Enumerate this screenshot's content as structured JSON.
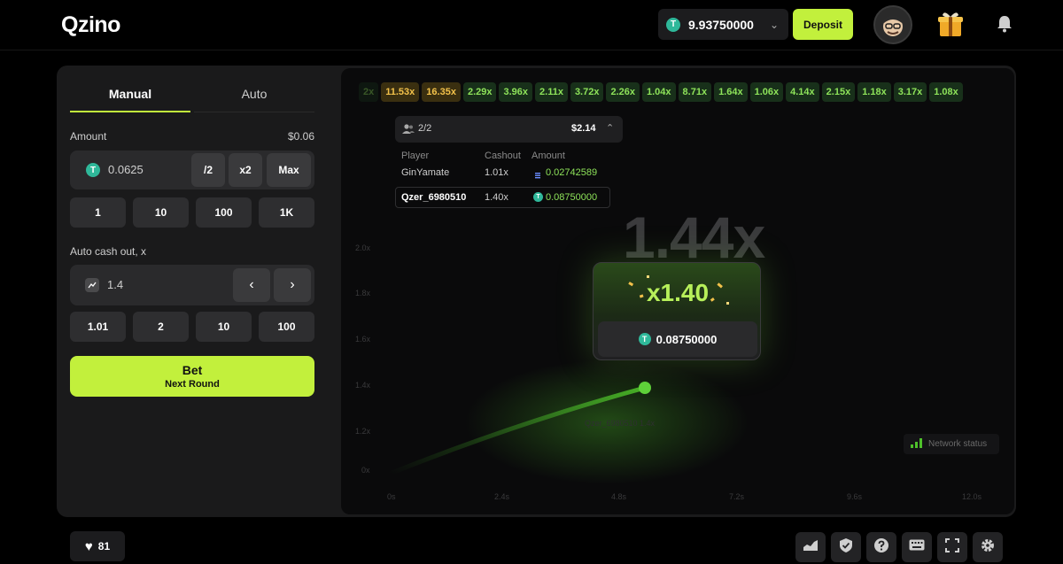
{
  "header": {
    "logo": "Qzino",
    "balance": "9.93750000",
    "coin_symbol": "T",
    "deposit_label": "Deposit"
  },
  "bet_panel": {
    "tabs": [
      "Manual",
      "Auto"
    ],
    "amount_label": "Amount",
    "amount_usd": "$0.06",
    "amount_value": "0.0625",
    "amount_actions": [
      "/2",
      "x2",
      "Max"
    ],
    "quick_amounts": [
      "1",
      "10",
      "100",
      "1K"
    ],
    "auto_cashout_label": "Auto cash out, x",
    "auto_cashout_value": "1.4",
    "quick_cashouts": [
      "1.01",
      "2",
      "10",
      "100"
    ],
    "bet_label": "Bet",
    "bet_sub": "Next Round"
  },
  "history": [
    {
      "v": "2x",
      "style": "faded"
    },
    {
      "v": "11.53x",
      "style": "gold"
    },
    {
      "v": "16.35x",
      "style": "gold"
    },
    {
      "v": "2.29x",
      "style": "green"
    },
    {
      "v": "3.96x",
      "style": "green"
    },
    {
      "v": "2.11x",
      "style": "green"
    },
    {
      "v": "3.72x",
      "style": "green"
    },
    {
      "v": "2.26x",
      "style": "green"
    },
    {
      "v": "1.04x",
      "style": "green"
    },
    {
      "v": "8.71x",
      "style": "green"
    },
    {
      "v": "1.64x",
      "style": "green"
    },
    {
      "v": "1.06x",
      "style": "green"
    },
    {
      "v": "4.14x",
      "style": "green"
    },
    {
      "v": "2.15x",
      "style": "green"
    },
    {
      "v": "1.18x",
      "style": "green"
    },
    {
      "v": "3.17x",
      "style": "green"
    },
    {
      "v": "1.08x",
      "style": "green"
    }
  ],
  "players": {
    "count": "2/2",
    "total": "$2.14",
    "columns": [
      "Player",
      "Cashout",
      "Amount"
    ],
    "rows": [
      {
        "name": "GinYamate",
        "cashout": "1.01x",
        "amount": "0.02742589"
      },
      {
        "name": "Qzer_6980510",
        "cashout": "1.40x",
        "amount": "0.08750000"
      }
    ]
  },
  "game": {
    "multiplier": "1.44x",
    "win_multiplier": "x1.40",
    "win_amount": "0.08750000",
    "trail_label": "Qzer_6980510 1.4x",
    "network_status": "Network status",
    "y_ticks": [
      "2.0x",
      "1.8x",
      "1.6x",
      "1.4x",
      "1.2x",
      "0x"
    ],
    "x_ticks": [
      "0s",
      "2.4s",
      "4.8s",
      "7.2s",
      "9.6s",
      "12.0s"
    ]
  },
  "footer": {
    "likes": "81"
  },
  "colors": {
    "accent": "#c2f03c",
    "win_green": "#8ee35a",
    "gold": "#f2c14a",
    "panel": "#1a1a1b"
  }
}
